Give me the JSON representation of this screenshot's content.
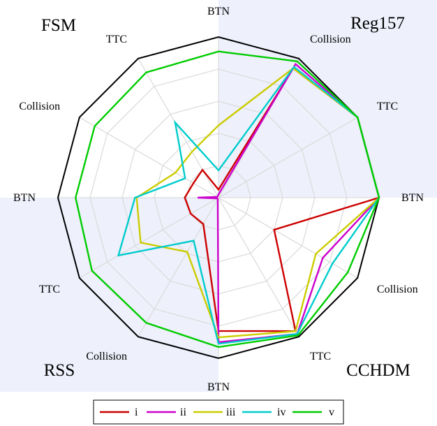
{
  "chart_data": {
    "type": "radar",
    "groups": [
      "FSM",
      "Reg157",
      "CCHDM",
      "RSS"
    ],
    "axes": [
      "BTN",
      "Collision",
      "TTC",
      "BTN",
      "Collision",
      "TTC",
      "BTN",
      "Collision",
      "TTC",
      "BTN",
      "Collision",
      "TTC"
    ],
    "rlim": [
      0,
      1
    ],
    "grid": true,
    "legend_position": "bottom",
    "series": [
      {
        "name": "i",
        "color": "#cc0000",
        "values": [
          0.05,
          0.93,
          1.0,
          1.0,
          0.4,
          0.96,
          0.83,
          0.19,
          0.2,
          0.21,
          0.18,
          0.2
        ]
      },
      {
        "name": "ii",
        "color": "#cc00cc",
        "values": [
          0.02,
          0.96,
          1.0,
          1.0,
          0.75,
          0.98,
          0.9,
          0.01,
          0.01,
          0.13,
          0.01,
          0.01
        ]
      },
      {
        "name": "iii",
        "color": "#cccc00",
        "values": [
          0.45,
          0.93,
          1.0,
          1.0,
          0.7,
          0.96,
          0.87,
          0.39,
          0.56,
          0.51,
          0.31,
          0.33
        ]
      },
      {
        "name": "iv",
        "color": "#00cccc",
        "values": [
          0.17,
          0.94,
          1.0,
          1.0,
          0.82,
          0.98,
          0.91,
          0.31,
          0.72,
          0.52,
          0.24,
          0.54
        ]
      },
      {
        "name": "v",
        "color": "#00cc00",
        "values": [
          0.91,
          0.98,
          1.0,
          1.0,
          0.93,
          0.99,
          0.93,
          0.9,
          0.91,
          0.89,
          0.89,
          0.9
        ]
      }
    ]
  }
}
